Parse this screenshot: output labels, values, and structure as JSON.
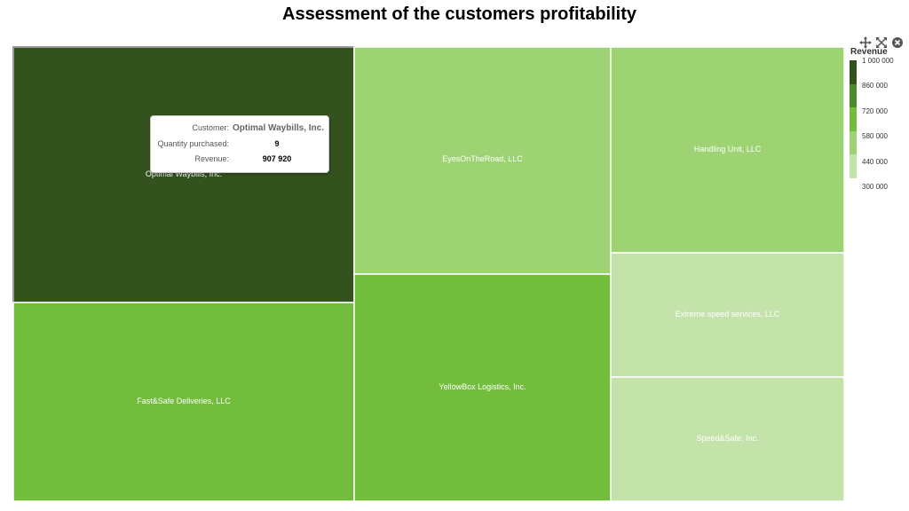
{
  "title": "Assessment of the customers profitability",
  "chart_data": {
    "type": "treemap",
    "title": "Assessment of the customers profitability",
    "color_metric": "Revenue",
    "items": [
      {
        "name": "Optimal Waybills, Inc.",
        "revenue": 907920,
        "quantity": 9,
        "color": "#33521d",
        "highlighted": true
      },
      {
        "name": "Fast&Safe Deliveries, LLC",
        "revenue": 720000,
        "color": "#73bd3c"
      },
      {
        "name": "EyesOnTheRoad, LLC",
        "revenue": 600000,
        "color": "#9dd372"
      },
      {
        "name": "YellowBox Logistics, Inc.",
        "revenue": 720000,
        "color": "#73bd3c"
      },
      {
        "name": "Handling Unit, LLC",
        "revenue": 600000,
        "color": "#9dd372"
      },
      {
        "name": "Extreme speed services, LLC",
        "revenue": 450000,
        "color": "#c4e3aa"
      },
      {
        "name": "Speed&Safe, Inc.",
        "revenue": 450000,
        "color": "#c4e3aa"
      }
    ],
    "legend": {
      "title": "Revenue",
      "position": "right",
      "ticks": [
        "1 000 000",
        "860 000",
        "720 000",
        "580 000",
        "440 000",
        "300 000"
      ],
      "colors": [
        "#33521d",
        "#4d8a2c",
        "#73bd3c",
        "#9dd372",
        "#c4e3aa"
      ]
    }
  },
  "tooltip": {
    "customer_label": "Customer:",
    "customer_value": "Optimal Waybills, Inc.",
    "quantity_label": "Quantity purchased:",
    "quantity_value": "9",
    "revenue_label": "Revenue:",
    "revenue_value": "907 920"
  },
  "toolbar": {
    "icons": [
      "pan-icon",
      "fullscreen-icon",
      "close-icon"
    ]
  }
}
